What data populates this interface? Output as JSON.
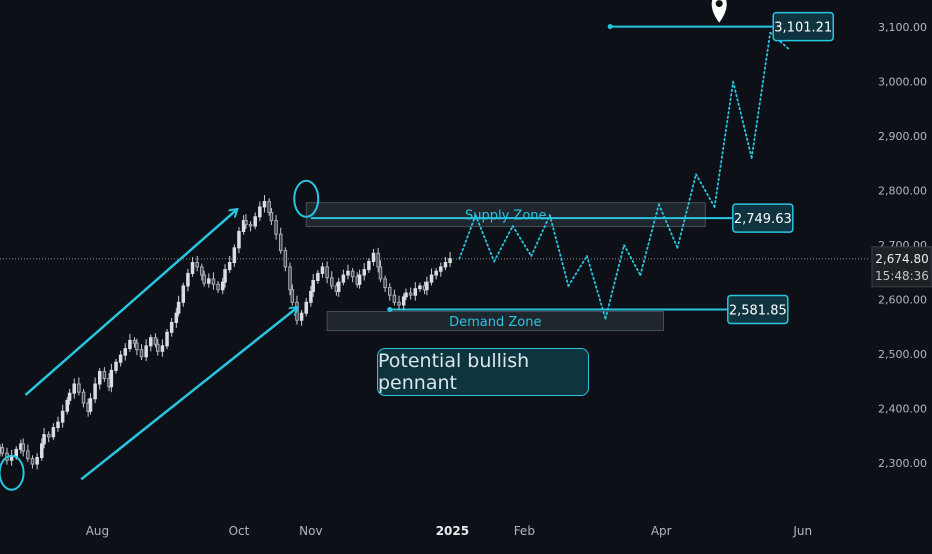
{
  "chart_data": {
    "type": "candlestick",
    "y_ticks": [
      "3,100.00",
      "3,000.00",
      "2,900.00",
      "2,800.00",
      "2,700.00",
      "2,600.00",
      "2,500.00",
      "2,400.00",
      "2,300.00"
    ],
    "y_tick_values": [
      3100,
      3000,
      2900,
      2800,
      2700,
      2600,
      2500,
      2400,
      2300
    ],
    "ylim": [
      2210,
      3150
    ],
    "x_ticks": [
      {
        "label": "Aug",
        "date": "2024-08-01"
      },
      {
        "label": "Oct",
        "date": "2024-10-01"
      },
      {
        "label": "Nov",
        "date": "2024-11-01"
      },
      {
        "label": "2025",
        "date": "2025-01-01",
        "bold": true
      },
      {
        "label": "Feb",
        "date": "2025-02-01"
      },
      {
        "label": "Apr",
        "date": "2025-04-01"
      },
      {
        "label": "Jun",
        "date": "2025-06-01"
      }
    ],
    "xlim": [
      "2024-06-20",
      "2025-06-30"
    ],
    "current_price": {
      "value": 2674.8,
      "label": "2,674.80",
      "countdown": "15:48:36"
    },
    "price_labels": [
      {
        "name": "target",
        "value": 3101.21,
        "label": "3,101.21"
      },
      {
        "name": "supply",
        "value": 2749.63,
        "label": "2,749.63"
      },
      {
        "name": "demand",
        "value": 2581.85,
        "label": "2,581.85"
      }
    ],
    "zones": [
      {
        "name": "Supply Zone",
        "label": "Supply Zone",
        "from": "2024-10-30",
        "to": "2025-04-20",
        "low": 2734,
        "high": 2778
      },
      {
        "name": "Demand Zone",
        "label": "Demand Zone",
        "from": "2024-11-08",
        "to": "2025-04-02",
        "low": 2543,
        "high": 2578
      }
    ],
    "annotation": "Potential bullish pennant",
    "closes": [
      2328,
      2318,
      2305,
      2312,
      2325,
      2335,
      2322,
      2308,
      2298,
      2310,
      2335,
      2352,
      2348,
      2365,
      2375,
      2395,
      2415,
      2428,
      2445,
      2430,
      2410,
      2395,
      2418,
      2445,
      2468,
      2455,
      2440,
      2470,
      2485,
      2498,
      2510,
      2525,
      2520,
      2508,
      2495,
      2515,
      2530,
      2518,
      2505,
      2515,
      2540,
      2558,
      2575,
      2595,
      2625,
      2648,
      2668,
      2660,
      2645,
      2630,
      2638,
      2628,
      2618,
      2632,
      2655,
      2668,
      2695,
      2725,
      2745,
      2738,
      2735,
      2752,
      2770,
      2780,
      2760,
      2745,
      2720,
      2690,
      2660,
      2618,
      2595,
      2562,
      2575,
      2595,
      2615,
      2635,
      2648,
      2660,
      2640,
      2625,
      2615,
      2632,
      2645,
      2652,
      2642,
      2628,
      2645,
      2655,
      2670,
      2685,
      2660,
      2638,
      2622,
      2608,
      2595,
      2590,
      2605,
      2612,
      2608,
      2620,
      2625,
      2618,
      2632,
      2645,
      2652,
      2660,
      2668,
      2675
    ],
    "projection": [
      [
        2675,
        2755
      ],
      [
        2755,
        2670
      ],
      [
        2670,
        2735
      ],
      [
        2735,
        2680
      ],
      [
        2680,
        2755
      ],
      [
        2755,
        2625
      ],
      [
        2625,
        2680
      ],
      [
        2680,
        2565
      ],
      [
        2565,
        2700
      ],
      [
        2700,
        2645
      ],
      [
        2645,
        2775
      ],
      [
        2775,
        2695
      ],
      [
        2695,
        2830
      ],
      [
        2830,
        2770
      ],
      [
        2770,
        3000
      ],
      [
        3000,
        2860
      ],
      [
        2860,
        3090
      ],
      [
        3090,
        3060
      ]
    ]
  }
}
